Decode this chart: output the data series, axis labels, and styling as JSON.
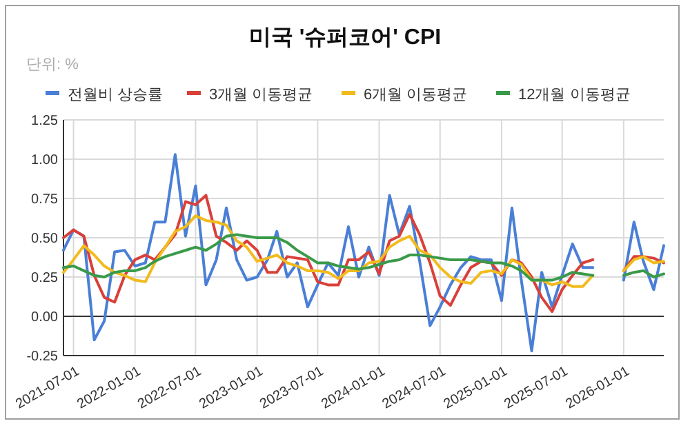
{
  "chart_data": {
    "type": "line",
    "title": "미국 '슈퍼코어' CPI",
    "subtitle": "단위: %",
    "x": [
      "2021-06-01",
      "2021-07-01",
      "2021-08-01",
      "2021-09-01",
      "2021-10-01",
      "2021-11-01",
      "2021-12-01",
      "2022-01-01",
      "2022-02-01",
      "2022-03-01",
      "2022-04-01",
      "2022-05-01",
      "2022-06-01",
      "2022-07-01",
      "2022-08-01",
      "2022-09-01",
      "2022-10-01",
      "2022-11-01",
      "2022-12-01",
      "2023-01-01",
      "2023-02-01",
      "2023-03-01",
      "2023-04-01",
      "2023-05-01",
      "2023-06-01",
      "2023-07-01",
      "2023-08-01",
      "2023-09-01",
      "2023-10-01",
      "2023-11-01",
      "2023-12-01",
      "2024-01-01",
      "2024-02-01",
      "2024-03-01",
      "2024-04-01",
      "2024-05-01",
      "2024-06-01",
      "2024-07-01",
      "2024-08-01",
      "2024-09-01",
      "2024-10-01",
      "2024-11-01",
      "2024-12-01",
      "2025-01-01",
      "2025-02-01",
      "2025-03-01",
      "2025-04-01",
      "2025-05-01",
      "2025-06-01",
      "2025-07-01",
      "2025-08-01",
      "2025-09-01",
      "2025-10-01",
      "2025-11-01",
      "2025-12-01",
      "2026-01-01",
      "2026-02-01",
      "2026-03-01",
      "2026-04-01",
      "2026-05-01"
    ],
    "series": [
      {
        "name": "전월비 상승률",
        "color": "#4a7fd6",
        "values": [
          0.42,
          0.55,
          0.51,
          -0.15,
          -0.03,
          0.41,
          0.42,
          0.32,
          0.34,
          0.6,
          0.6,
          1.03,
          0.51,
          0.83,
          0.2,
          0.36,
          0.69,
          0.36,
          0.23,
          0.25,
          0.36,
          0.54,
          0.25,
          0.34,
          0.06,
          0.2,
          0.34,
          0.26,
          0.57,
          0.25,
          0.44,
          0.26,
          0.77,
          0.52,
          0.7,
          0.35,
          -0.06,
          0.06,
          0.2,
          0.31,
          0.38,
          0.36,
          0.36,
          0.1,
          0.69,
          0.23,
          -0.22,
          0.28,
          0.06,
          0.26,
          0.46,
          0.31,
          0.31,
          null,
          null,
          0.23,
          0.6,
          0.35,
          0.17,
          0.45
        ]
      },
      {
        "name": "3개월 이동평균",
        "color": "#d9403a",
        "values": [
          0.5,
          0.55,
          0.51,
          0.26,
          0.12,
          0.09,
          0.26,
          0.36,
          0.39,
          0.36,
          0.44,
          0.52,
          0.73,
          0.71,
          0.77,
          0.51,
          0.47,
          0.42,
          0.48,
          0.42,
          0.28,
          0.28,
          0.38,
          0.37,
          0.36,
          0.22,
          0.2,
          0.2,
          0.36,
          0.36,
          0.41,
          0.27,
          0.48,
          0.51,
          0.65,
          0.52,
          0.34,
          0.13,
          0.07,
          0.2,
          0.31,
          0.35,
          0.34,
          0.26,
          0.36,
          0.34,
          0.25,
          0.12,
          0.03,
          0.17,
          0.26,
          0.34,
          0.36,
          null,
          null,
          0.29,
          0.38,
          0.38,
          0.37,
          0.34
        ]
      },
      {
        "name": "6개월 이동평균",
        "color": "#f2bb1d",
        "values": [
          0.28,
          0.36,
          0.45,
          0.39,
          0.32,
          0.28,
          0.26,
          0.23,
          0.22,
          0.34,
          0.44,
          0.54,
          0.57,
          0.64,
          0.61,
          0.6,
          0.58,
          0.48,
          0.44,
          0.35,
          0.37,
          0.39,
          0.34,
          0.32,
          0.29,
          0.29,
          0.28,
          0.24,
          0.29,
          0.29,
          0.34,
          0.35,
          0.44,
          0.48,
          0.51,
          0.42,
          0.39,
          0.31,
          0.25,
          0.22,
          0.21,
          0.28,
          0.29,
          0.27,
          0.36,
          0.33,
          0.23,
          0.23,
          0.2,
          0.22,
          0.19,
          0.19,
          0.26,
          null,
          null,
          0.29,
          0.36,
          0.38,
          0.34,
          0.35
        ]
      },
      {
        "name": "12개월 이동평균",
        "color": "#3a9a4a",
        "values": [
          0.31,
          0.32,
          0.29,
          0.26,
          0.25,
          0.28,
          0.29,
          0.29,
          0.31,
          0.35,
          0.38,
          0.4,
          0.42,
          0.44,
          0.42,
          0.46,
          0.51,
          0.52,
          0.51,
          0.5,
          0.5,
          0.5,
          0.47,
          0.42,
          0.38,
          0.34,
          0.34,
          0.32,
          0.31,
          0.3,
          0.31,
          0.33,
          0.35,
          0.36,
          0.39,
          0.39,
          0.38,
          0.37,
          0.36,
          0.36,
          0.36,
          0.35,
          0.34,
          0.34,
          0.32,
          0.29,
          0.23,
          0.23,
          0.23,
          0.25,
          0.28,
          0.27,
          0.26,
          null,
          null,
          0.26,
          0.28,
          0.29,
          0.25,
          0.27
        ]
      }
    ],
    "xlim": [
      "2021-06-01",
      "2026-05-01"
    ],
    "xticks": [
      "2021-07-01",
      "2022-01-01",
      "2022-07-01",
      "2023-01-01",
      "2023-07-01",
      "2024-01-01",
      "2024-07-01",
      "2025-01-01",
      "2025-07-01",
      "2026-01-01"
    ],
    "ylim": [
      -0.25,
      1.25
    ],
    "yticks": [
      {
        "value": -0.25,
        "label": "-0.25"
      },
      {
        "value": 0,
        "label": "0.00"
      },
      {
        "value": 0.25,
        "label": "0.25"
      },
      {
        "value": 0.5,
        "label": "0.50"
      },
      {
        "value": 0.75,
        "label": "0.75"
      },
      {
        "value": 1,
        "label": "1.00"
      },
      {
        "value": 1.25,
        "label": "1.25"
      }
    ],
    "grid": true,
    "legend": "top",
    "marker": "none",
    "line_style": "solid"
  }
}
